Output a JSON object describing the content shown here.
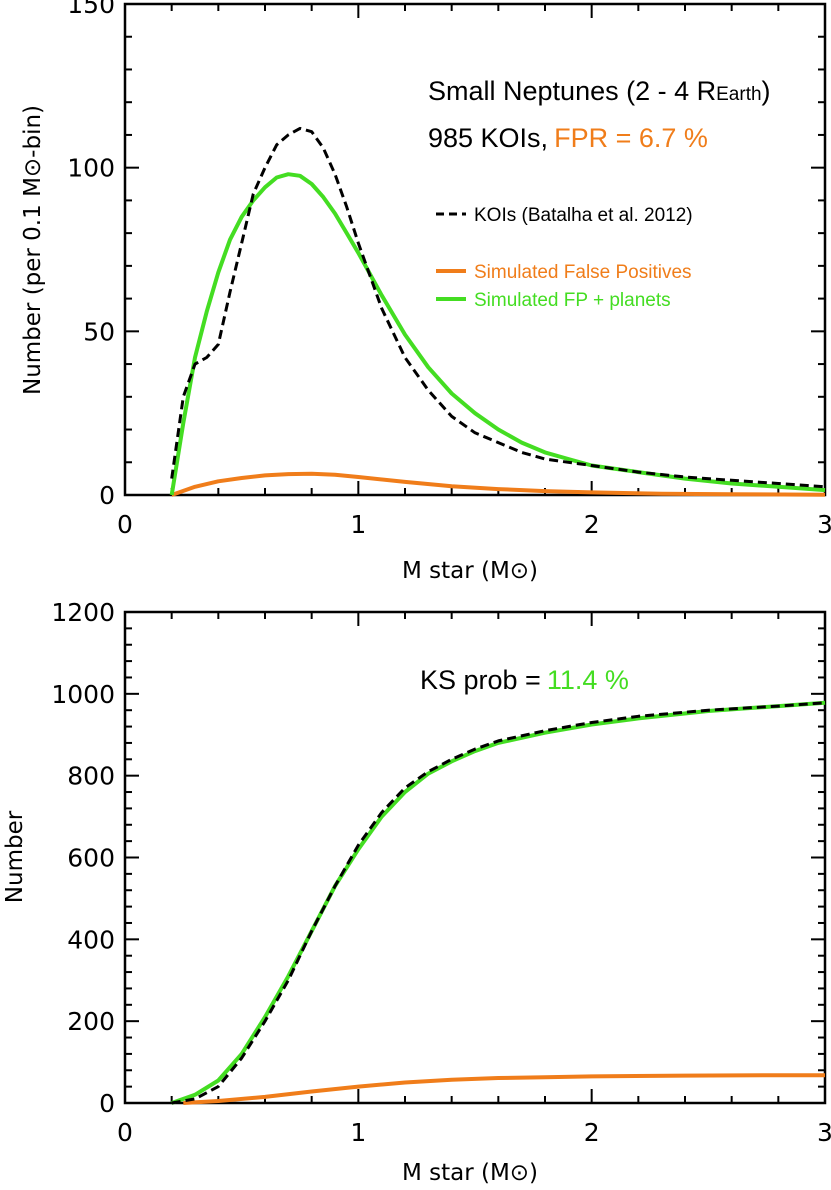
{
  "colors": {
    "koi": "#000000",
    "false_positive": "#f07d1a",
    "fp_planets": "#44dd22"
  },
  "chart_data": [
    {
      "type": "line",
      "xlabel": "M star (M⊙)",
      "ylabel": "Number  (per 0.1 M⊙-bin)",
      "xlim": [
        0,
        3
      ],
      "ylim": [
        0,
        150
      ],
      "xticks": [
        0,
        1,
        2,
        3
      ],
      "yticks": [
        0,
        50,
        100,
        150
      ],
      "annotations": {
        "title": "Small Neptunes (2 - 4 R",
        "title_sub": "Earth",
        "title_close": ")",
        "count": "985 KOIs,",
        "fpr": "FPR = 6.7 %"
      },
      "legend": [
        "KOIs (Batalha et al. 2012)",
        "Simulated False Positives",
        "Simulated FP + planets"
      ],
      "series": [
        {
          "name": "KOIs (Batalha et al. 2012)",
          "style": "dashed",
          "x": [
            0.2,
            0.25,
            0.3,
            0.35,
            0.4,
            0.45,
            0.5,
            0.55,
            0.6,
            0.65,
            0.7,
            0.75,
            0.8,
            0.85,
            0.9,
            0.95,
            1.0,
            1.1,
            1.2,
            1.3,
            1.4,
            1.5,
            1.6,
            1.7,
            1.8,
            1.9,
            2.0,
            2.2,
            2.4,
            2.6,
            2.8,
            3.0
          ],
          "y": [
            5,
            30,
            40,
            42,
            46,
            62,
            77,
            92,
            100,
            107,
            110,
            112,
            111,
            106,
            98,
            88,
            77,
            57,
            42,
            32,
            24,
            19,
            16,
            13,
            11,
            10,
            9,
            7,
            5.5,
            4.5,
            3.5,
            2.5
          ]
        },
        {
          "name": "Simulated False Positives",
          "style": "solid",
          "x": [
            0.2,
            0.3,
            0.4,
            0.5,
            0.6,
            0.7,
            0.8,
            0.9,
            1.0,
            1.2,
            1.4,
            1.6,
            1.8,
            2.0,
            2.3,
            2.6,
            3.0
          ],
          "y": [
            0,
            2.5,
            4.2,
            5.2,
            6.0,
            6.4,
            6.5,
            6.2,
            5.5,
            4.0,
            2.7,
            1.8,
            1.2,
            0.8,
            0.4,
            0.2,
            0.1
          ]
        },
        {
          "name": "Simulated FP + planets",
          "style": "solid",
          "x": [
            0.2,
            0.25,
            0.3,
            0.35,
            0.4,
            0.45,
            0.5,
            0.55,
            0.6,
            0.65,
            0.7,
            0.75,
            0.8,
            0.85,
            0.9,
            0.95,
            1.0,
            1.1,
            1.2,
            1.3,
            1.4,
            1.5,
            1.6,
            1.7,
            1.8,
            1.9,
            2.0,
            2.2,
            2.4,
            2.6,
            2.8,
            3.0
          ],
          "y": [
            0,
            22,
            42,
            56,
            68,
            78,
            85,
            90,
            94,
            97,
            98,
            97.5,
            95,
            91,
            86,
            80,
            74,
            61,
            49,
            39,
            31,
            25,
            20,
            16,
            13,
            11,
            9,
            7,
            5,
            3.5,
            2.5,
            1.5
          ]
        }
      ]
    },
    {
      "type": "line",
      "xlabel": "M star (M⊙)",
      "ylabel": "Number",
      "xlim": [
        0,
        3
      ],
      "ylim": [
        0,
        1200
      ],
      "xticks": [
        0,
        1,
        2,
        3
      ],
      "yticks": [
        0,
        200,
        400,
        600,
        800,
        1000,
        1200
      ],
      "annotations": {
        "ks_label": "KS prob =",
        "ks_value": "11.4 %"
      },
      "series": [
        {
          "name": "KOIs (Batalha et al. 2012)",
          "style": "dashed",
          "x": [
            0.2,
            0.3,
            0.4,
            0.5,
            0.6,
            0.7,
            0.8,
            0.9,
            1.0,
            1.1,
            1.2,
            1.3,
            1.4,
            1.5,
            1.6,
            1.8,
            2.0,
            2.2,
            2.5,
            2.8,
            3.0
          ],
          "y": [
            0,
            10,
            40,
            110,
            200,
            300,
            420,
            530,
            630,
            710,
            770,
            810,
            840,
            865,
            885,
            910,
            930,
            945,
            960,
            970,
            978
          ]
        },
        {
          "name": "Simulated False Positives",
          "style": "solid",
          "x": [
            0.25,
            0.4,
            0.6,
            0.8,
            1.0,
            1.2,
            1.4,
            1.6,
            1.8,
            2.0,
            2.4,
            2.8,
            3.0
          ],
          "y": [
            0,
            5,
            15,
            28,
            40,
            50,
            57,
            61,
            63,
            65,
            67,
            68,
            68
          ]
        },
        {
          "name": "Simulated FP + planets",
          "style": "solid",
          "x": [
            0.2,
            0.3,
            0.4,
            0.5,
            0.6,
            0.7,
            0.8,
            0.9,
            1.0,
            1.1,
            1.2,
            1.3,
            1.4,
            1.5,
            1.6,
            1.8,
            2.0,
            2.2,
            2.5,
            2.8,
            3.0
          ],
          "y": [
            0,
            20,
            55,
            120,
            210,
            310,
            420,
            530,
            620,
            700,
            760,
            805,
            835,
            860,
            880,
            905,
            925,
            940,
            958,
            970,
            978
          ]
        }
      ]
    }
  ]
}
